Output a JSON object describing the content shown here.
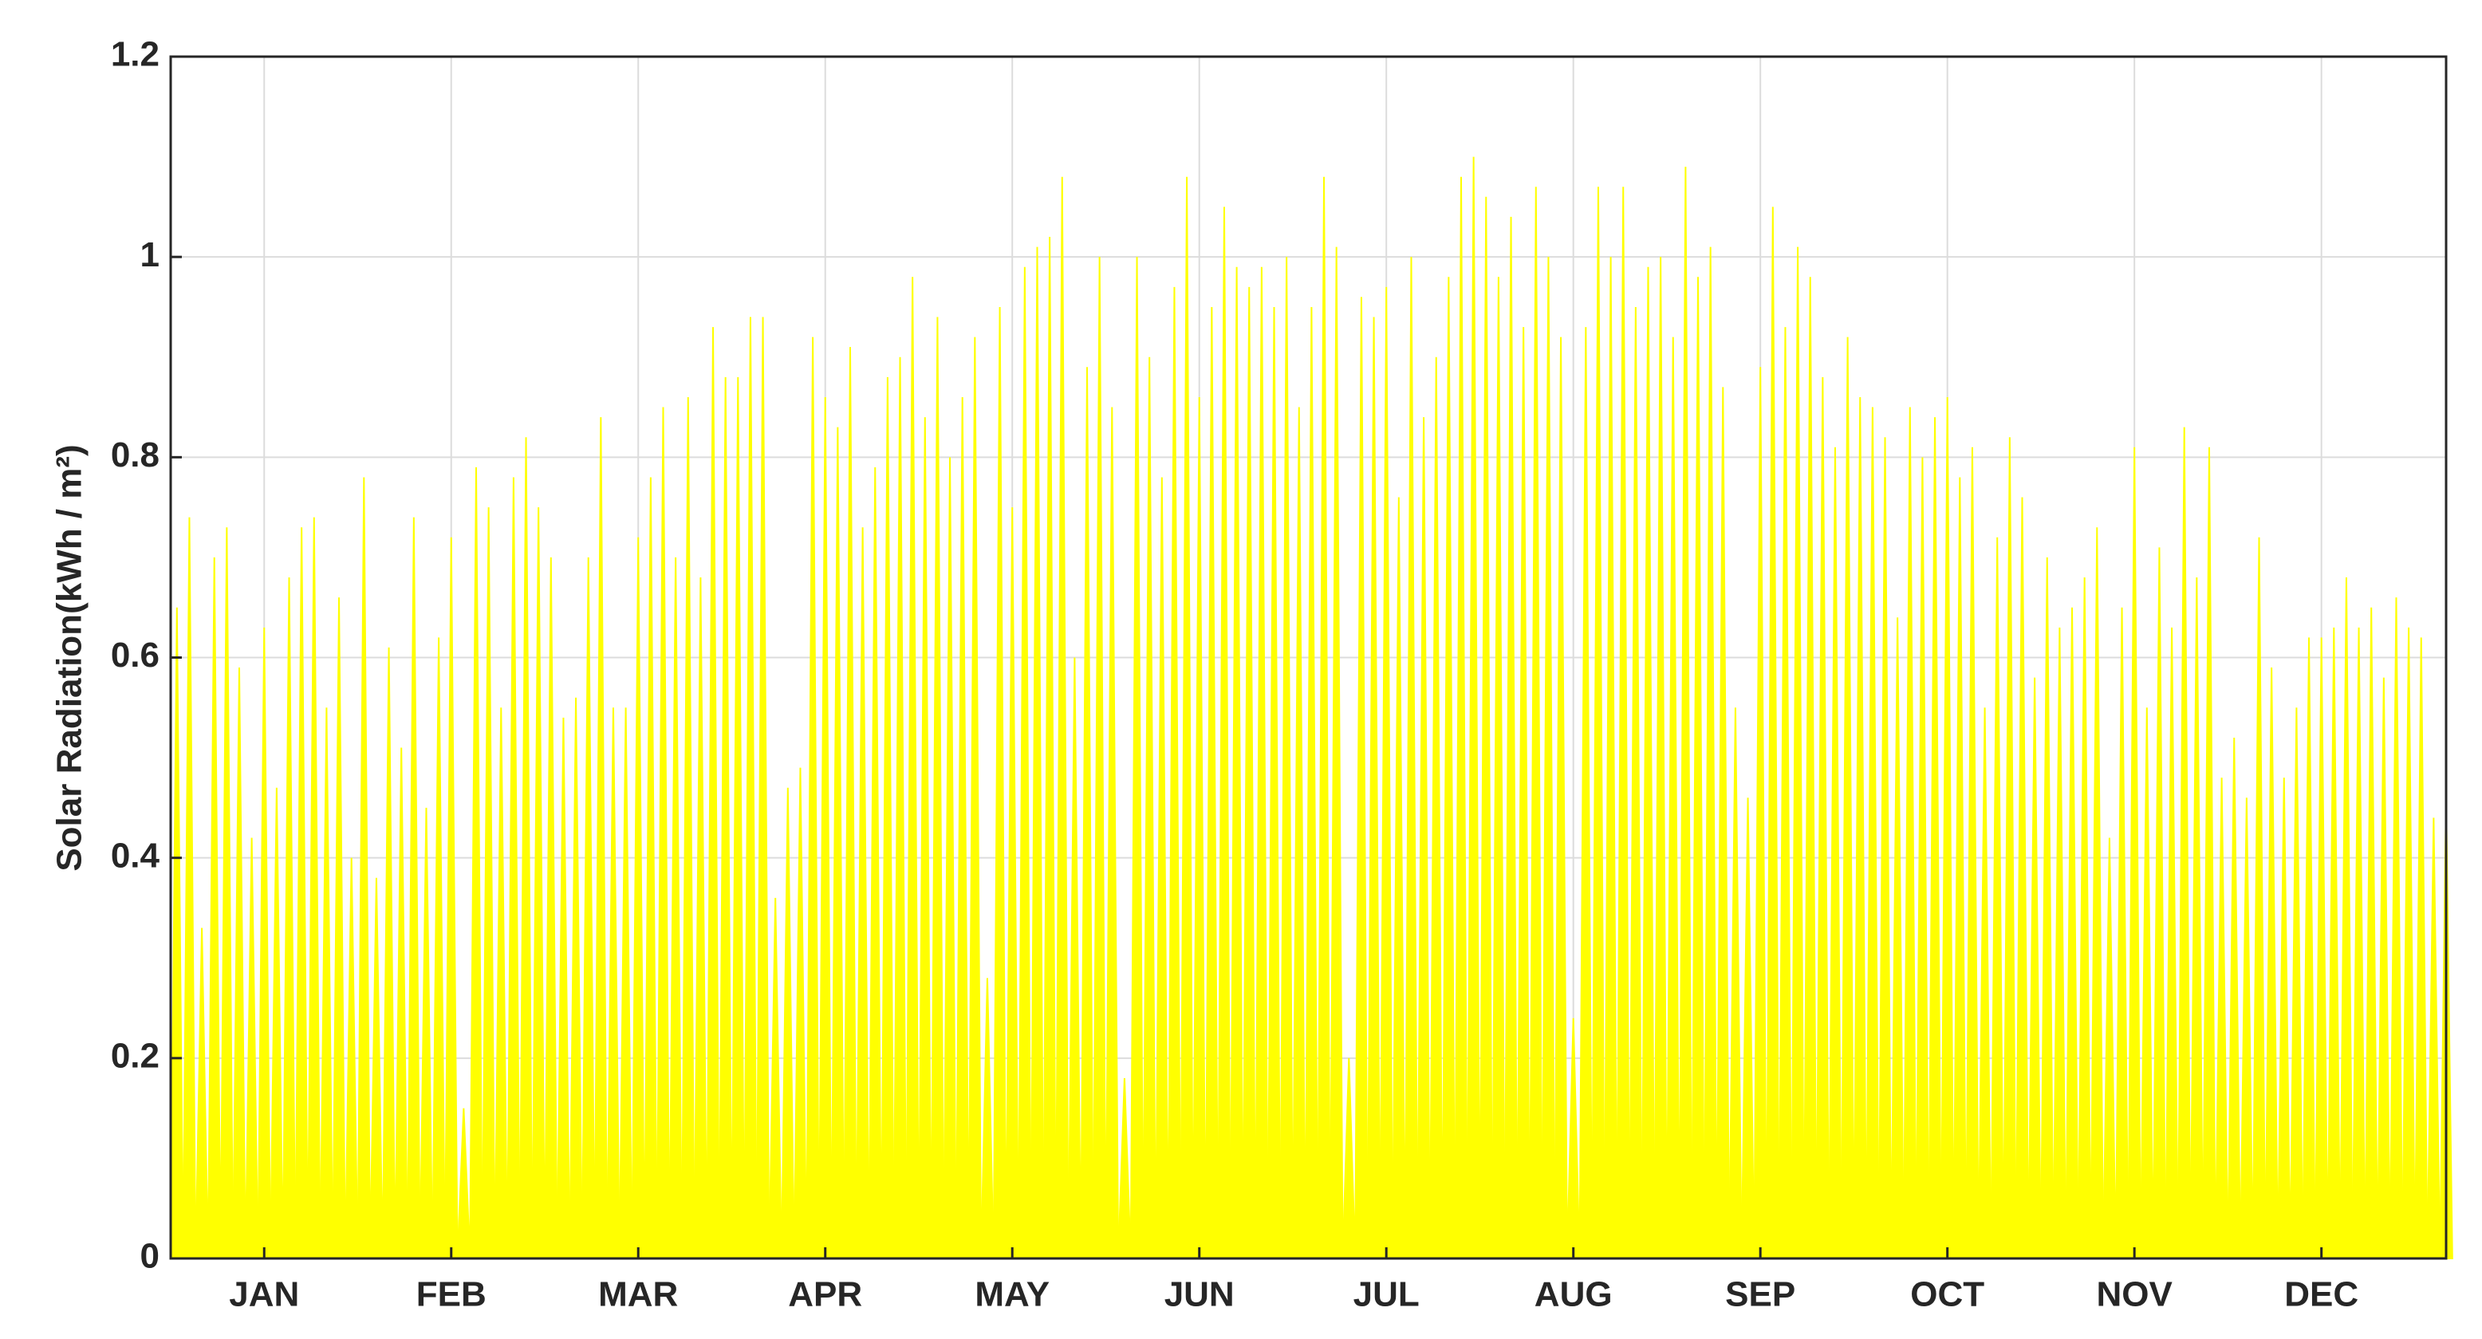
{
  "chart_data": {
    "type": "spike",
    "ylabel": "Solar Radiation(kWh / m²)",
    "color": "#ffff00",
    "grid": true,
    "xlim": [
      0,
      365
    ],
    "ylim": [
      0,
      1.2
    ],
    "xticks": [
      {
        "value": 15,
        "label": "JAN"
      },
      {
        "value": 45,
        "label": "FEB"
      },
      {
        "value": 75,
        "label": "MAR"
      },
      {
        "value": 105,
        "label": "APR"
      },
      {
        "value": 135,
        "label": "MAY"
      },
      {
        "value": 165,
        "label": "JUN"
      },
      {
        "value": 195,
        "label": "JUL"
      },
      {
        "value": 225,
        "label": "AUG"
      },
      {
        "value": 255,
        "label": "SEP"
      },
      {
        "value": 285,
        "label": "OCT"
      },
      {
        "value": 315,
        "label": "NOV"
      },
      {
        "value": 345,
        "label": "DEC"
      }
    ],
    "yticks": [
      0,
      0.2,
      0.4,
      0.6,
      0.8,
      1,
      1.2
    ],
    "x": [
      1,
      3,
      5,
      7,
      9,
      11,
      13,
      15,
      17,
      19,
      21,
      23,
      25,
      27,
      29,
      31,
      33,
      35,
      37,
      39,
      41,
      43,
      45,
      47,
      49,
      51,
      53,
      55,
      57,
      59,
      61,
      63,
      65,
      67,
      69,
      71,
      73,
      75,
      77,
      79,
      81,
      83,
      85,
      87,
      89,
      91,
      93,
      95,
      97,
      99,
      101,
      103,
      105,
      107,
      109,
      111,
      113,
      115,
      117,
      119,
      121,
      123,
      125,
      127,
      129,
      131,
      133,
      135,
      137,
      139,
      141,
      143,
      145,
      147,
      149,
      151,
      153,
      155,
      157,
      159,
      161,
      163,
      165,
      167,
      169,
      171,
      173,
      175,
      177,
      179,
      181,
      183,
      185,
      187,
      189,
      191,
      193,
      195,
      197,
      199,
      201,
      203,
      205,
      207,
      209,
      211,
      213,
      215,
      217,
      219,
      221,
      223,
      225,
      227,
      229,
      231,
      233,
      235,
      237,
      239,
      241,
      243,
      245,
      247,
      249,
      251,
      253,
      255,
      257,
      259,
      261,
      263,
      265,
      267,
      269,
      271,
      273,
      275,
      277,
      279,
      281,
      283,
      285,
      287,
      289,
      291,
      293,
      295,
      297,
      299,
      301,
      303,
      305,
      307,
      309,
      311,
      313,
      315,
      317,
      319,
      321,
      323,
      325,
      327,
      329,
      331,
      333,
      335,
      337,
      339,
      341,
      343,
      345,
      347,
      349,
      351,
      353,
      355,
      357,
      359,
      361,
      363,
      365
    ],
    "values": [
      0.65,
      0.74,
      0.33,
      0.7,
      0.73,
      0.59,
      0.42,
      0.63,
      0.47,
      0.68,
      0.73,
      0.74,
      0.55,
      0.66,
      0.4,
      0.78,
      0.38,
      0.61,
      0.51,
      0.74,
      0.45,
      0.62,
      0.72,
      0.15,
      0.79,
      0.75,
      0.55,
      0.78,
      0.82,
      0.75,
      0.7,
      0.54,
      0.56,
      0.7,
      0.84,
      0.55,
      0.55,
      0.72,
      0.78,
      0.85,
      0.7,
      0.86,
      0.68,
      0.93,
      0.88,
      0.88,
      0.94,
      0.94,
      0.36,
      0.47,
      0.49,
      0.92,
      0.86,
      0.83,
      0.91,
      0.73,
      0.79,
      0.88,
      0.9,
      0.98,
      0.84,
      0.94,
      0.8,
      0.86,
      0.92,
      0.28,
      0.95,
      0.75,
      0.99,
      1.01,
      1.02,
      1.08,
      0.6,
      0.89,
      1.0,
      0.85,
      0.18,
      1.0,
      0.9,
      0.78,
      0.97,
      1.08,
      0.86,
      0.95,
      1.05,
      0.99,
      0.97,
      0.99,
      0.95,
      1.0,
      0.85,
      0.95,
      1.08,
      1.01,
      0.2,
      0.96,
      0.94,
      0.97,
      0.76,
      1.0,
      0.84,
      0.9,
      0.98,
      1.08,
      1.1,
      1.06,
      0.98,
      1.04,
      0.93,
      1.07,
      1.0,
      0.92,
      0.24,
      0.93,
      1.07,
      1.0,
      1.07,
      0.95,
      0.99,
      1.0,
      0.92,
      1.09,
      0.98,
      1.01,
      0.87,
      0.55,
      0.46,
      0.89,
      1.05,
      0.93,
      1.01,
      0.98,
      0.88,
      0.81,
      0.92,
      0.86,
      0.85,
      0.82,
      0.64,
      0.85,
      0.8,
      0.84,
      0.86,
      0.78,
      0.81,
      0.55,
      0.72,
      0.82,
      0.76,
      0.58,
      0.7,
      0.63,
      0.65,
      0.68,
      0.73,
      0.42,
      0.65,
      0.81,
      0.55,
      0.71,
      0.63,
      0.83,
      0.68,
      0.81,
      0.48,
      0.52,
      0.46,
      0.72,
      0.59,
      0.48,
      0.55,
      0.62,
      0.62,
      0.63,
      0.68,
      0.63,
      0.65,
      0.58,
      0.66,
      0.63,
      0.62,
      0.44,
      0.46
    ]
  }
}
